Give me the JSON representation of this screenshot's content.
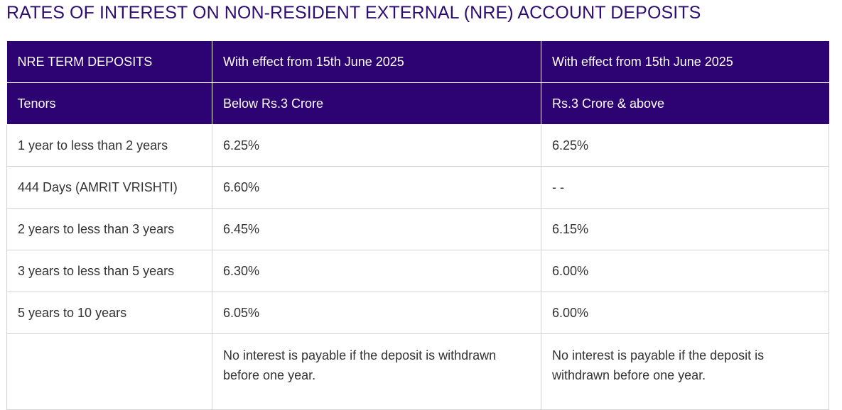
{
  "page": {
    "title": "RATES OF INTEREST ON NON-RESIDENT EXTERNAL (NRE) ACCOUNT DEPOSITS"
  },
  "table": {
    "header_rows": [
      [
        "NRE TERM DEPOSITS",
        "With effect from 15th June 2025",
        "With effect from 15th June 2025"
      ],
      [
        "Tenors",
        "Below Rs.3 Crore",
        "Rs.3 Crore & above"
      ]
    ],
    "rows": [
      [
        "1 year to less than 2 years",
        "6.25%",
        "6.25%"
      ],
      [
        "444 Days (AMRIT VRISHTI)",
        "6.60%",
        "- -"
      ],
      [
        "2 years to less than 3 years",
        "6.45%",
        "6.15%"
      ],
      [
        "3 years to less than 5 years",
        "6.30%",
        "6.00%"
      ],
      [
        "5 years to 10 years",
        "6.05%",
        "6.00%"
      ]
    ],
    "note_row": [
      "",
      "No interest is payable if the deposit is withdrawn before one year.",
      "No interest is payable if the deposit is withdrawn before one year."
    ]
  },
  "colors": {
    "title": "#2f0c73",
    "header_bg": "#2d0272",
    "header_text": "#ffffff",
    "body_text": "#333333",
    "grid": "#d3d3d3"
  }
}
